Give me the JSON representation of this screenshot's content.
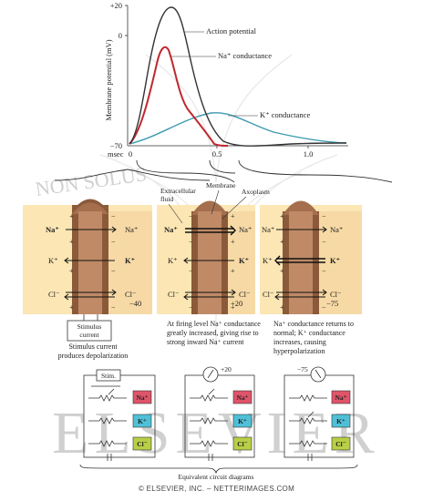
{
  "chart": {
    "y_label": "Membrane potential (mV)",
    "y_ticks": [
      "+20",
      "0",
      "−70"
    ],
    "x_unit": "msec",
    "x_ticks": [
      "0",
      "0.5",
      "1.0"
    ],
    "labels": {
      "action_potential": "Action potential",
      "na_conductance": "Na⁺ conductance",
      "k_conductance": "K⁺ conductance"
    },
    "colors": {
      "action_potential": "#333333",
      "na": "#c0282d",
      "k": "#3d9bb0"
    }
  },
  "membrane_labels": {
    "extracellular": "Extracellular",
    "fluid": "fluid",
    "membrane": "Membrane",
    "axoplasm": "Axoplasm"
  },
  "panels": [
    {
      "na_out": "Na⁺",
      "na_in": "Na⁺",
      "k_out": "K⁺",
      "k_in": "K⁺",
      "cl_out": "Cl⁻",
      "cl_in": "Cl⁻",
      "potential": "−40"
    },
    {
      "na_out": "Na⁺",
      "na_in": "Na⁺",
      "k_out": "K⁺",
      "k_in": "K⁺",
      "cl_out": "Cl⁻",
      "cl_in": "Cl⁻",
      "potential": "+20"
    },
    {
      "na_out": "Na⁺",
      "na_in": "Na⁺",
      "k_out": "K⁺",
      "k_in": "K⁺",
      "cl_out": "Cl⁻",
      "cl_in": "Cl⁻",
      "potential": "−75"
    }
  ],
  "stimulus": {
    "box_line1": "Stimulus",
    "box_line2": "current"
  },
  "captions": {
    "c1": "Stimulus current produces depolarization",
    "c2": "At firing level Na⁺ conductance greatly increased, giving rise to strong inward Na⁺ current",
    "c3": "Na⁺ conductance returns to normal; K⁺ conductance increases, causing hyperpolarization"
  },
  "circuits": {
    "stim_label": "Stim.",
    "meter2": "+20",
    "meter3": "−75",
    "na": "Na⁺",
    "k": "K⁺",
    "cl": "Cl⁻",
    "title": "Equivalent circuit diagrams",
    "na_color": "#e0546a",
    "k_color": "#4fc0d8",
    "cl_color": "#b8cf46"
  },
  "watermarks": {
    "publisher": "ELSEVIER",
    "motto": "NON SOLUS"
  },
  "footer": "© ELSEVIER, INC. – NETTERIMAGES.COM"
}
